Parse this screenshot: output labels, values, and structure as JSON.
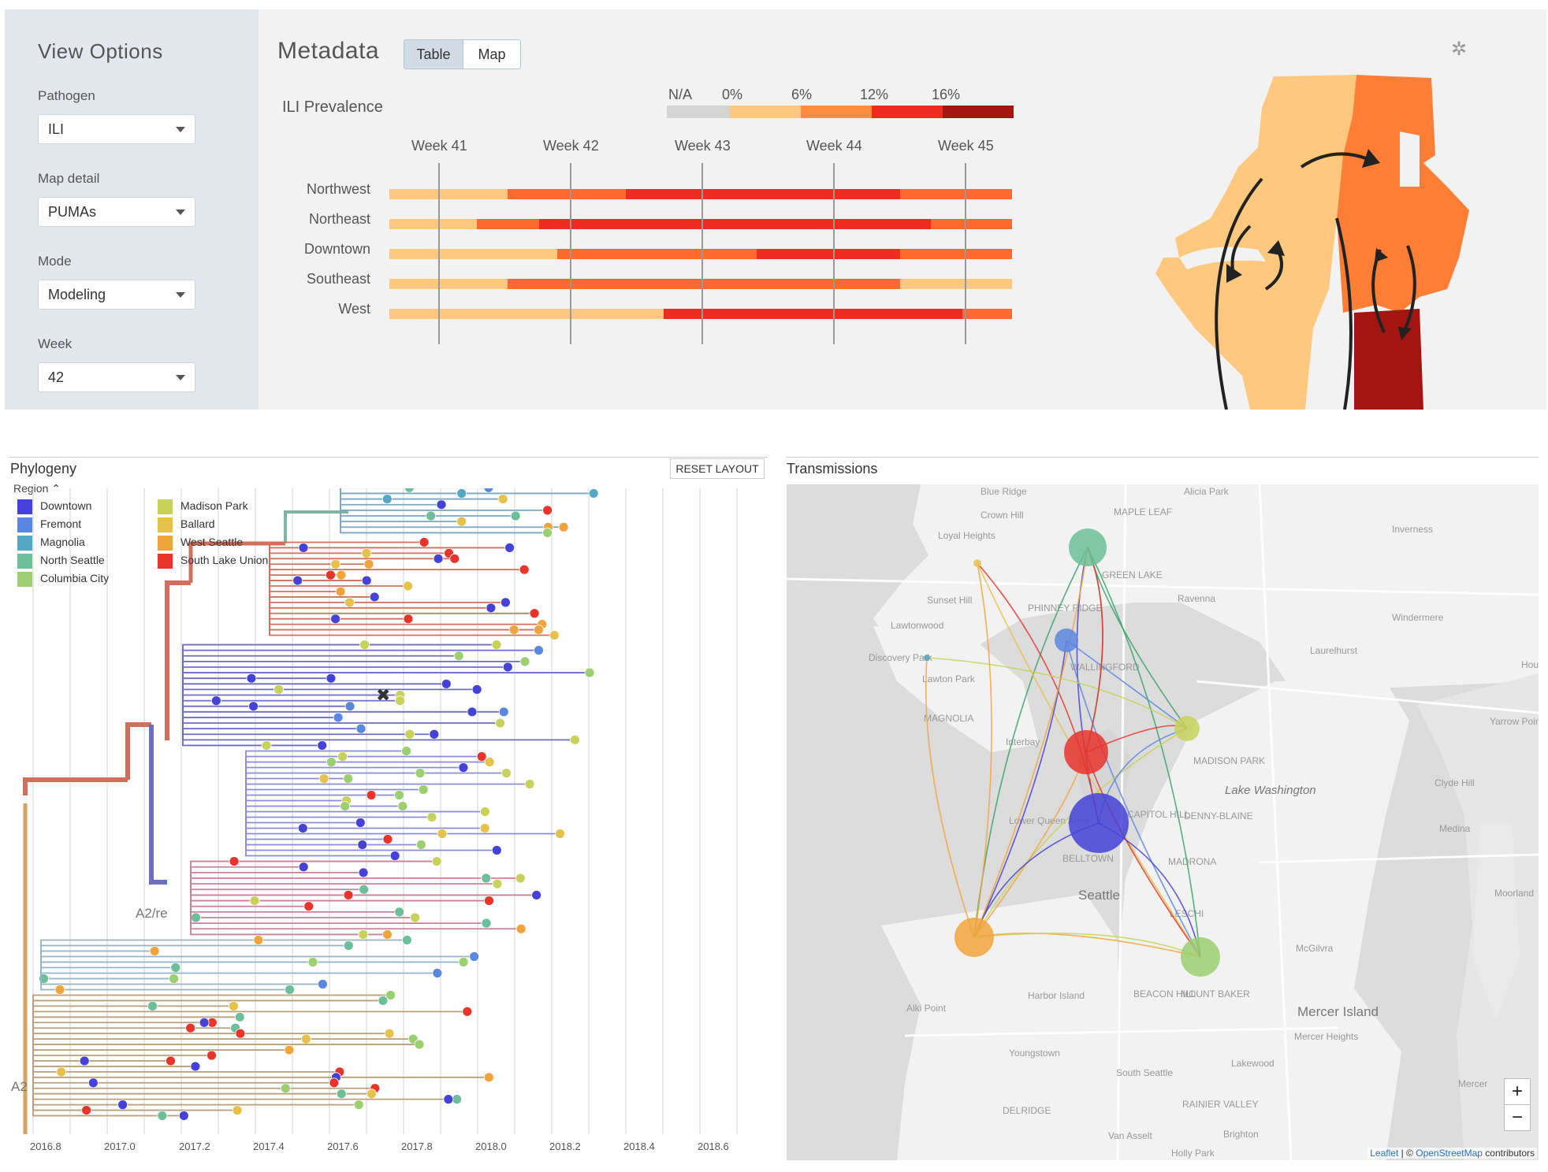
{
  "sidebar": {
    "title": "View Options",
    "controls": [
      {
        "label": "Pathogen",
        "value": "ILI"
      },
      {
        "label": "Map detail",
        "value": "PUMAs"
      },
      {
        "label": "Mode",
        "value": "Modeling"
      },
      {
        "label": "Week",
        "value": "42"
      }
    ]
  },
  "metadata": {
    "title": "Metadata",
    "tabs": [
      "Table",
      "Map"
    ],
    "selected_tab": "Table",
    "ili_label": "ILI Prevalence",
    "legend": {
      "labels": [
        "N/A",
        "0%",
        "6%",
        "12%",
        "16%"
      ],
      "colors": [
        "#d4d4d4",
        "#fec97f",
        "#fd8d3c",
        "#ef2c20",
        "#a2160f"
      ]
    },
    "weeks": [
      "Week 41",
      "Week 42",
      "Week 43",
      "Week 44",
      "Week 45"
    ],
    "rows": [
      {
        "name": "Northwest",
        "segments": [
          [
            0,
            0.19,
            "#fec97f"
          ],
          [
            0.19,
            0.38,
            "#fd6a2c"
          ],
          [
            0.38,
            0.82,
            "#ef2c20"
          ],
          [
            0.82,
            1,
            "#fd6a2c"
          ]
        ]
      },
      {
        "name": "Northeast",
        "segments": [
          [
            0,
            0.14,
            "#fec97f"
          ],
          [
            0.14,
            0.24,
            "#fd6a2c"
          ],
          [
            0.24,
            0.87,
            "#ef2c20"
          ],
          [
            0.87,
            1,
            "#fd6a2c"
          ]
        ]
      },
      {
        "name": "Downtown",
        "segments": [
          [
            0,
            0.27,
            "#fec97f"
          ],
          [
            0.27,
            0.59,
            "#fd6a2c"
          ],
          [
            0.59,
            0.82,
            "#ef2c20"
          ],
          [
            0.82,
            1,
            "#fd6a2c"
          ]
        ]
      },
      {
        "name": "Southeast",
        "segments": [
          [
            0,
            0.19,
            "#fec97f"
          ],
          [
            0.19,
            0.82,
            "#fd6a2c"
          ],
          [
            0.82,
            1,
            "#fec97f"
          ]
        ]
      },
      {
        "name": "West",
        "segments": [
          [
            0,
            0.44,
            "#fec97f"
          ],
          [
            0.44,
            0.92,
            "#ef2c20"
          ],
          [
            0.92,
            1,
            "#fd6a2c"
          ]
        ]
      }
    ],
    "settings_icon": "gear-icon"
  },
  "phylogeny": {
    "title": "Phylogeny",
    "reset_label": "RESET LAYOUT",
    "region_label": "Region",
    "regions": [
      {
        "name": "Downtown",
        "color": "#4542d8"
      },
      {
        "name": "Fremont",
        "color": "#5a87e0"
      },
      {
        "name": "Magnolia",
        "color": "#55a7c4"
      },
      {
        "name": "North Seattle",
        "color": "#6cbf98"
      },
      {
        "name": "Columbia City",
        "color": "#9ccf70"
      },
      {
        "name": "Madison Park",
        "color": "#c8d25a"
      },
      {
        "name": "Ballard",
        "color": "#e6c24d"
      },
      {
        "name": "West Seattle",
        "color": "#f2a43c"
      },
      {
        "name": "South Lake Union",
        "color": "#e8342b"
      }
    ],
    "clade_labels": [
      "A2/re",
      "A2"
    ],
    "x_ticks": [
      "2016.8",
      "2017.0",
      "2017.2",
      "2017.4",
      "2017.6",
      "2017.8",
      "2018.0",
      "2018.2",
      "2018.4",
      "2018.6"
    ]
  },
  "transmissions": {
    "title": "Transmissions",
    "places": [
      "Blue Ridge",
      "Crown Hill",
      "MAPLE LEAF",
      "Loyal Heights",
      "GREEN LAKE",
      "Sunset Hill",
      "PHINNEY RIDGE",
      "Ravenna",
      "Lawtonwood",
      "Discovery Park",
      "Laurelhurst",
      "Lawton Park",
      "WALLINGFORD",
      "MAGNOLIA",
      "Interbay",
      "MADISON PARK",
      "Lake Washington",
      "Clyde Hill",
      "Lower Queen Anne",
      "CAPITOL HILL",
      "DENNY-BLAINE",
      "Medina",
      "BELLTOWN",
      "MADRONA",
      "Seattle",
      "LESCHI",
      "McGilvra",
      "Alki Point",
      "Harbor Island",
      "BEACON HILL",
      "MOUNT BAKER",
      "Mercer Island",
      "Mercer Heights",
      "Youngstown",
      "South Seattle",
      "Lakewood",
      "DELRIDGE",
      "RAINIER VALLEY",
      "Van Asselt",
      "Brighton",
      "Holly Park",
      "Alicia Park",
      "Inverness",
      "Windermere",
      "Yarrow Point",
      "Moorland",
      "Mercer",
      "Hough"
    ],
    "zoom_in": "+",
    "zoom_out": "−",
    "attribution": {
      "leaflet": "Leaflet",
      "sep": " | © ",
      "osm": "OpenStreetMap",
      "suffix": " contributors"
    }
  }
}
